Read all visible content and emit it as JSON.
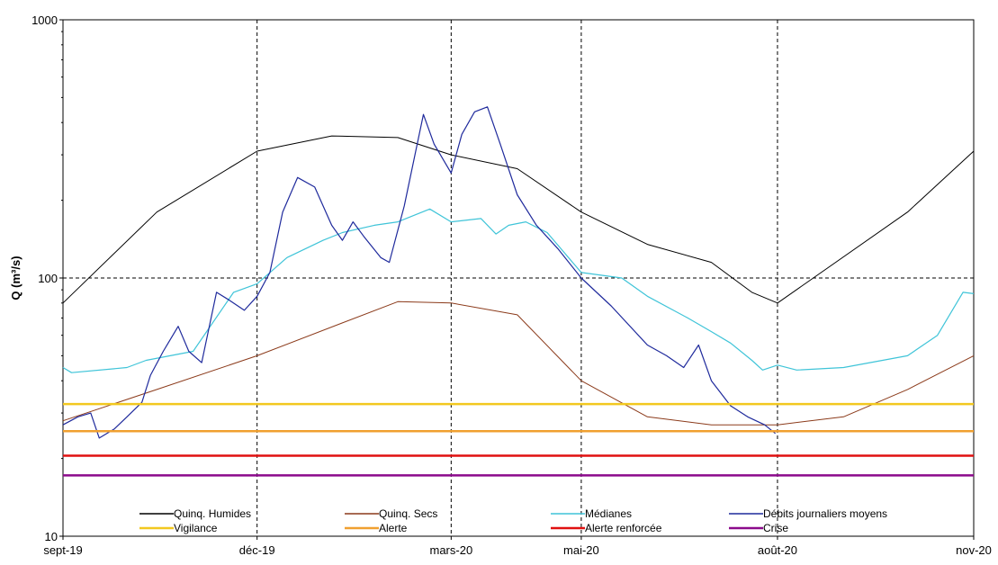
{
  "chart_data": {
    "type": "line",
    "title": "",
    "xlabel": "",
    "ylabel": "Q (m³/s)",
    "y_scale": "log",
    "ylim": [
      10,
      1000
    ],
    "xlim": [
      "2019-09-01",
      "2020-11-01"
    ],
    "grid": true,
    "legend_position": "bottom-inside",
    "x_ticks": [
      {
        "date": "2019-09-01",
        "label": "sept-19"
      },
      {
        "date": "2019-12-01",
        "label": "déc-19"
      },
      {
        "date": "2020-03-01",
        "label": "mars-20"
      },
      {
        "date": "2020-05-01",
        "label": "mai-20"
      },
      {
        "date": "2020-08-01",
        "label": "août-20"
      },
      {
        "date": "2020-11-01",
        "label": "nov-20"
      }
    ],
    "y_ticks": [
      {
        "value": 10,
        "label": "10"
      },
      {
        "value": 100,
        "label": "100"
      },
      {
        "value": 1000,
        "label": "1000"
      }
    ],
    "series": [
      {
        "name": "Quinq. Humides",
        "color": "#000000",
        "width": 1,
        "points": [
          [
            "2019-09-01",
            80
          ],
          [
            "2019-10-15",
            180
          ],
          [
            "2019-12-01",
            310
          ],
          [
            "2020-01-05",
            355
          ],
          [
            "2020-02-05",
            350
          ],
          [
            "2020-03-01",
            300
          ],
          [
            "2020-04-01",
            265
          ],
          [
            "2020-05-01",
            180
          ],
          [
            "2020-06-01",
            135
          ],
          [
            "2020-07-01",
            115
          ],
          [
            "2020-07-20",
            88
          ],
          [
            "2020-08-01",
            80
          ],
          [
            "2020-10-01",
            180
          ],
          [
            "2020-11-01",
            310
          ]
        ]
      },
      {
        "name": "Quinq. Secs",
        "color": "#8b3a1a",
        "width": 1,
        "points": [
          [
            "2019-09-01",
            28
          ],
          [
            "2019-10-15",
            37
          ],
          [
            "2019-12-01",
            50
          ],
          [
            "2020-01-10",
            67
          ],
          [
            "2020-02-05",
            81
          ],
          [
            "2020-03-01",
            80
          ],
          [
            "2020-04-01",
            72
          ],
          [
            "2020-05-01",
            40
          ],
          [
            "2020-06-01",
            29
          ],
          [
            "2020-07-01",
            27
          ],
          [
            "2020-08-01",
            27
          ],
          [
            "2020-09-01",
            29
          ],
          [
            "2020-10-01",
            37
          ],
          [
            "2020-11-01",
            50
          ]
        ]
      },
      {
        "name": "Médianes",
        "color": "#3fc4d8",
        "width": 1.2,
        "points": [
          [
            "2019-09-01",
            45
          ],
          [
            "2019-09-05",
            43
          ],
          [
            "2019-10-01",
            45
          ],
          [
            "2019-10-10",
            48
          ],
          [
            "2019-11-01",
            52
          ],
          [
            "2019-11-20",
            88
          ],
          [
            "2019-12-01",
            95
          ],
          [
            "2019-12-15",
            120
          ],
          [
            "2020-01-01",
            140
          ],
          [
            "2020-01-10",
            150
          ],
          [
            "2020-01-25",
            160
          ],
          [
            "2020-02-05",
            165
          ],
          [
            "2020-02-20",
            185
          ],
          [
            "2020-03-01",
            165
          ],
          [
            "2020-03-15",
            170
          ],
          [
            "2020-03-22",
            148
          ],
          [
            "2020-03-28",
            160
          ],
          [
            "2020-04-05",
            165
          ],
          [
            "2020-04-15",
            150
          ],
          [
            "2020-05-01",
            105
          ],
          [
            "2020-05-20",
            100
          ],
          [
            "2020-06-01",
            85
          ],
          [
            "2020-06-20",
            70
          ],
          [
            "2020-07-01",
            62
          ],
          [
            "2020-07-10",
            56
          ],
          [
            "2020-07-20",
            48
          ],
          [
            "2020-07-25",
            44
          ],
          [
            "2020-08-01",
            46
          ],
          [
            "2020-08-10",
            44
          ],
          [
            "2020-09-01",
            45
          ],
          [
            "2020-10-01",
            50
          ],
          [
            "2020-10-15",
            60
          ],
          [
            "2020-10-27",
            88
          ],
          [
            "2020-11-01",
            87
          ]
        ]
      },
      {
        "name": "Débits journaliers moyens",
        "color": "#1f2a9c",
        "width": 1.2,
        "points": [
          [
            "2019-09-01",
            27
          ],
          [
            "2019-09-08",
            29
          ],
          [
            "2019-09-14",
            30
          ],
          [
            "2019-09-18",
            24
          ],
          [
            "2019-09-25",
            26
          ],
          [
            "2019-10-01",
            29
          ],
          [
            "2019-10-08",
            33
          ],
          [
            "2019-10-12",
            42
          ],
          [
            "2019-10-18",
            52
          ],
          [
            "2019-10-25",
            65
          ],
          [
            "2019-10-30",
            52
          ],
          [
            "2019-11-05",
            47
          ],
          [
            "2019-11-12",
            88
          ],
          [
            "2019-11-18",
            82
          ],
          [
            "2019-11-25",
            75
          ],
          [
            "2019-12-01",
            85
          ],
          [
            "2019-12-07",
            105
          ],
          [
            "2019-12-13",
            180
          ],
          [
            "2019-12-20",
            245
          ],
          [
            "2019-12-28",
            225
          ],
          [
            "2020-01-05",
            160
          ],
          [
            "2020-01-10",
            140
          ],
          [
            "2020-01-15",
            165
          ],
          [
            "2020-01-20",
            145
          ],
          [
            "2020-01-28",
            120
          ],
          [
            "2020-02-01",
            115
          ],
          [
            "2020-02-08",
            190
          ],
          [
            "2020-02-13",
            300
          ],
          [
            "2020-02-17",
            430
          ],
          [
            "2020-02-22",
            330
          ],
          [
            "2020-03-01",
            255
          ],
          [
            "2020-03-06",
            360
          ],
          [
            "2020-03-12",
            440
          ],
          [
            "2020-03-18",
            460
          ],
          [
            "2020-03-24",
            330
          ],
          [
            "2020-04-01",
            210
          ],
          [
            "2020-04-10",
            160
          ],
          [
            "2020-04-20",
            130
          ],
          [
            "2020-05-01",
            100
          ],
          [
            "2020-05-15",
            78
          ],
          [
            "2020-06-01",
            55
          ],
          [
            "2020-06-10",
            50
          ],
          [
            "2020-06-18",
            45
          ],
          [
            "2020-06-25",
            55
          ],
          [
            "2020-07-01",
            40
          ],
          [
            "2020-07-10",
            32
          ],
          [
            "2020-07-18",
            29
          ],
          [
            "2020-07-26",
            27
          ],
          [
            "2020-07-31",
            25
          ]
        ]
      },
      {
        "name": "Vigilance",
        "color": "#f2c81f",
        "width": 2.5,
        "points": [
          [
            "2019-09-01",
            32.5
          ],
          [
            "2020-11-01",
            32.5
          ]
        ]
      },
      {
        "name": "Alerte",
        "color": "#f0a030",
        "width": 2.5,
        "points": [
          [
            "2019-09-01",
            25.5
          ],
          [
            "2020-11-01",
            25.5
          ]
        ]
      },
      {
        "name": "Alerte renforcée",
        "color": "#e01010",
        "width": 2.5,
        "points": [
          [
            "2019-09-01",
            20.5
          ],
          [
            "2020-11-01",
            20.5
          ]
        ]
      },
      {
        "name": "Crise",
        "color": "#8b0a8b",
        "width": 2.5,
        "points": [
          [
            "2019-09-01",
            17.2
          ],
          [
            "2020-11-01",
            17.2
          ]
        ]
      }
    ]
  }
}
